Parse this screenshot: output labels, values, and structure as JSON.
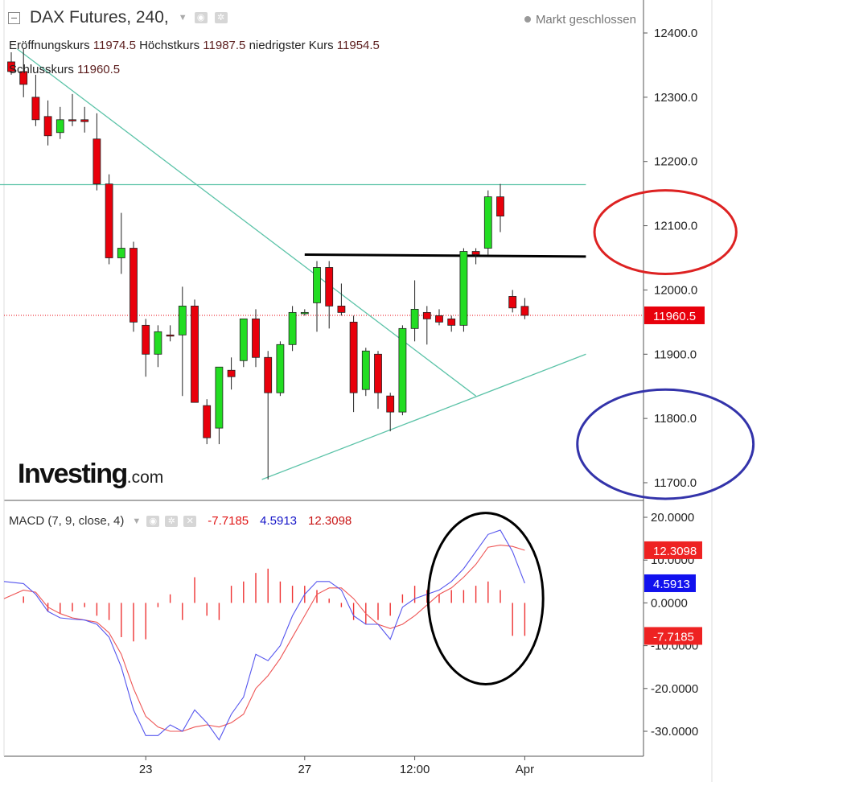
{
  "header": {
    "title": "DAX Futures, 240,",
    "market_status": "Markt geschlossen",
    "ohlc": [
      {
        "label": "Eröffnungskurs",
        "value": "11974.5"
      },
      {
        "label": "Höchstkurs",
        "value": "11987.5"
      },
      {
        "label": "niedrigster Kurs",
        "value": "11954.5"
      },
      {
        "label": "Schlusskurs",
        "value": "11960.5"
      }
    ]
  },
  "logo": {
    "main": "Investing",
    "suffix": ".com"
  },
  "macd_header": {
    "label": "MACD (7, 9, close, 4)",
    "hist": "-7.7185",
    "macd": "4.5913",
    "signal": "12.3098"
  },
  "colors": {
    "up": "#22dd22",
    "down": "#e8000b",
    "trend": "#5cc3a8",
    "macd_line": "#5555ee",
    "signal_line": "#ee5555",
    "hist": "#ee3333"
  },
  "chart_data": [
    {
      "type": "candlestick",
      "title": "DAX Futures, 240",
      "y_ticks": [
        "12400.0",
        "12300.0",
        "12200.0",
        "12100.0",
        "12000.0",
        "11900.0",
        "11800.0",
        "11700.0"
      ],
      "y_tick_values": [
        12400,
        12300,
        12200,
        12100,
        12000,
        11900,
        11800,
        11700
      ],
      "ylim": [
        11675,
        12410
      ],
      "x_ticks": [
        {
          "label": "23",
          "index": 11
        },
        {
          "label": "27",
          "index": 24
        },
        {
          "label": "12:00",
          "index": 33
        },
        {
          "label": "Apr",
          "index": 42
        }
      ],
      "last_price": {
        "label": "11960.5",
        "value": 11960.5
      },
      "candles": [
        {
          "o": 12355,
          "h": 12370,
          "l": 12335,
          "c": 12340
        },
        {
          "o": 12340,
          "h": 12375,
          "l": 12300,
          "c": 12320
        },
        {
          "o": 12300,
          "h": 12335,
          "l": 12255,
          "c": 12265
        },
        {
          "o": 12270,
          "h": 12295,
          "l": 12225,
          "c": 12240
        },
        {
          "o": 12245,
          "h": 12285,
          "l": 12235,
          "c": 12265
        },
        {
          "o": 12265,
          "h": 12305,
          "l": 12255,
          "c": 12264
        },
        {
          "o": 12265,
          "h": 12285,
          "l": 12245,
          "c": 12262
        },
        {
          "o": 12235,
          "h": 12275,
          "l": 12155,
          "c": 12165
        },
        {
          "o": 12165,
          "h": 12180,
          "l": 12040,
          "c": 12050
        },
        {
          "o": 12050,
          "h": 12120,
          "l": 12025,
          "c": 12065
        },
        {
          "o": 12065,
          "h": 12075,
          "l": 11935,
          "c": 11950
        },
        {
          "o": 11945,
          "h": 11955,
          "l": 11865,
          "c": 11900
        },
        {
          "o": 11900,
          "h": 11945,
          "l": 11880,
          "c": 11935
        },
        {
          "o": 11930,
          "h": 11945,
          "l": 11920,
          "c": 11929
        },
        {
          "o": 11930,
          "h": 12005,
          "l": 11835,
          "c": 11975
        },
        {
          "o": 11975,
          "h": 11985,
          "l": 11825,
          "c": 11825
        },
        {
          "o": 11820,
          "h": 11830,
          "l": 11760,
          "c": 11770
        },
        {
          "o": 11785,
          "h": 11880,
          "l": 11760,
          "c": 11880
        },
        {
          "o": 11875,
          "h": 11895,
          "l": 11845,
          "c": 11865
        },
        {
          "o": 11890,
          "h": 11950,
          "l": 11880,
          "c": 11955
        },
        {
          "o": 11955,
          "h": 11970,
          "l": 11880,
          "c": 11895
        },
        {
          "o": 11895,
          "h": 11905,
          "l": 11705,
          "c": 11840
        },
        {
          "o": 11840,
          "h": 11920,
          "l": 11835,
          "c": 11915
        },
        {
          "o": 11915,
          "h": 11975,
          "l": 11905,
          "c": 11965
        },
        {
          "o": 11963,
          "h": 11970,
          "l": 11960,
          "c": 11965
        },
        {
          "o": 11980,
          "h": 12045,
          "l": 11935,
          "c": 12035
        },
        {
          "o": 12035,
          "h": 12045,
          "l": 11940,
          "c": 11975
        },
        {
          "o": 11975,
          "h": 12010,
          "l": 11960,
          "c": 11965
        },
        {
          "o": 11950,
          "h": 11960,
          "l": 11810,
          "c": 11840
        },
        {
          "o": 11845,
          "h": 11910,
          "l": 11835,
          "c": 11905
        },
        {
          "o": 11900,
          "h": 11905,
          "l": 11815,
          "c": 11840
        },
        {
          "o": 11835,
          "h": 11840,
          "l": 11780,
          "c": 11810
        },
        {
          "o": 11810,
          "h": 11945,
          "l": 11805,
          "c": 11940
        },
        {
          "o": 11940,
          "h": 12015,
          "l": 11920,
          "c": 11970
        },
        {
          "o": 11965,
          "h": 11975,
          "l": 11915,
          "c": 11955
        },
        {
          "o": 11960,
          "h": 11970,
          "l": 11945,
          "c": 11950
        },
        {
          "o": 11955,
          "h": 11960,
          "l": 11935,
          "c": 11945
        },
        {
          "o": 11945,
          "h": 12065,
          "l": 11935,
          "c": 12060
        },
        {
          "o": 12060,
          "h": 12065,
          "l": 12040,
          "c": 12055
        },
        {
          "o": 12065,
          "h": 12155,
          "l": 12055,
          "c": 12145
        },
        {
          "o": 12145,
          "h": 12165,
          "l": 12090,
          "c": 12115
        },
        {
          "o": 11990,
          "h": 12000,
          "l": 11965,
          "c": 11972
        },
        {
          "o": 11974.5,
          "h": 11987.5,
          "l": 11954.5,
          "c": 11960.5
        }
      ],
      "gap_after_index": 40,
      "lines": [
        {
          "color": "#5cc3a8",
          "from": {
            "i": 0.5,
            "y": 12375
          },
          "to": {
            "i": 38,
            "y": 11835
          }
        },
        {
          "color": "#5cc3a8",
          "from": {
            "i": -1,
            "y": 12164
          },
          "to": {
            "i": 47,
            "y": 12164
          }
        },
        {
          "color": "#5cc3a8",
          "from": {
            "i": 20.5,
            "y": 11705
          },
          "to": {
            "i": 47,
            "y": 11900
          }
        },
        {
          "color": "#000000",
          "from": {
            "i": 24,
            "y": 12055
          },
          "to": {
            "i": 47,
            "y": 12052
          }
        }
      ]
    },
    {
      "type": "line",
      "title": "MACD (7, 9, close, 4)",
      "y_ticks": [
        "20.0000",
        "10.0000",
        "0.0000",
        "-10.0000",
        "-20.0000",
        "-30.0000"
      ],
      "y_tick_values": [
        20,
        10,
        0,
        -10,
        -20,
        -30
      ],
      "ylim": [
        -36,
        23
      ],
      "last_values": [
        {
          "label": "12.3098",
          "value": 12.3098,
          "color": "#ee2222"
        },
        {
          "label": "4.5913",
          "value": 4.5913,
          "color": "#1111ee"
        },
        {
          "label": "-7.7185",
          "value": -7.7185,
          "color": "#ee2222"
        }
      ],
      "series": [
        {
          "key": "macd",
          "color": "#5555ee",
          "values": [
            5,
            4.5,
            2,
            -2,
            -3.5,
            -3.8,
            -4,
            -5,
            -8,
            -15,
            -25,
            -31,
            -31,
            -28.5,
            -30,
            -25,
            -28,
            -32,
            -26,
            -22,
            -12,
            -13.5,
            -10,
            -3,
            2,
            5,
            5,
            3,
            -3,
            -5,
            -5,
            -8.5,
            -1,
            1,
            2,
            3,
            5,
            8,
            12,
            16,
            17,
            12,
            4.6
          ]
        },
        {
          "key": "signal",
          "color": "#ee5555",
          "values": [
            1,
            3,
            2.5,
            -1,
            -2.5,
            -3.5,
            -4,
            -4.5,
            -7,
            -12,
            -20,
            -26.5,
            -29,
            -30,
            -30,
            -29,
            -28.5,
            -29,
            -28,
            -26,
            -20,
            -17,
            -13,
            -8,
            -3,
            2,
            3.5,
            3.5,
            1,
            -2.5,
            -5,
            -6,
            -5,
            -3,
            -0.5,
            2,
            3.5,
            6,
            9,
            13,
            13.5,
            13.2,
            12.3
          ]
        },
        {
          "key": "histogram",
          "color": "#ee3333",
          "values": [
            0,
            1.5,
            0,
            -2,
            -2.5,
            -2,
            -1,
            -3,
            -4,
            -8,
            -9,
            -8.5,
            -1,
            2,
            -4,
            6,
            -3,
            -4,
            4,
            5,
            7,
            8,
            5,
            4,
            4,
            3,
            1,
            -1,
            -4,
            -5,
            -4,
            -3,
            2,
            4,
            3,
            2,
            3,
            3,
            4,
            5,
            3,
            -7.7,
            -7.7
          ]
        }
      ]
    }
  ],
  "annotations": {
    "circles": [
      {
        "color": "#dd2222",
        "panel": "price",
        "center_i": 53.5,
        "center_y": 12090,
        "rx_bars": 5.8,
        "ry_units": 65
      },
      {
        "color": "#3333aa",
        "panel": "price",
        "center_i": 53.5,
        "center_y": 11760,
        "rx_bars": 7.2,
        "ry_units": 85
      },
      {
        "color": "#000000",
        "panel": "macd",
        "center_i": 38.8,
        "center_y": 1,
        "rx_bars": 4.7,
        "ry_units": 20
      }
    ]
  }
}
